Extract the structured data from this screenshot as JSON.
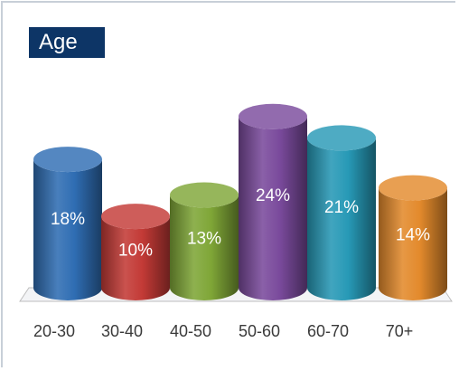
{
  "chart_data": {
    "type": "bar",
    "title": "Age",
    "categories": [
      "20-30",
      "30-40",
      "40-50",
      "50-60",
      "60-70",
      "70+"
    ],
    "values": [
      18,
      10,
      13,
      24,
      21,
      14
    ],
    "value_labels": [
      "18%",
      "10%",
      "13%",
      "24%",
      "21%",
      "14%"
    ],
    "xlabel": "",
    "ylabel": "",
    "ylim": [
      0,
      26
    ],
    "grid": false,
    "bar_style": "3d-cylinder",
    "colors": [
      "#2f6db3",
      "#c33a36",
      "#7fa637",
      "#7a4a9c",
      "#2799b6",
      "#e38a2c"
    ]
  }
}
